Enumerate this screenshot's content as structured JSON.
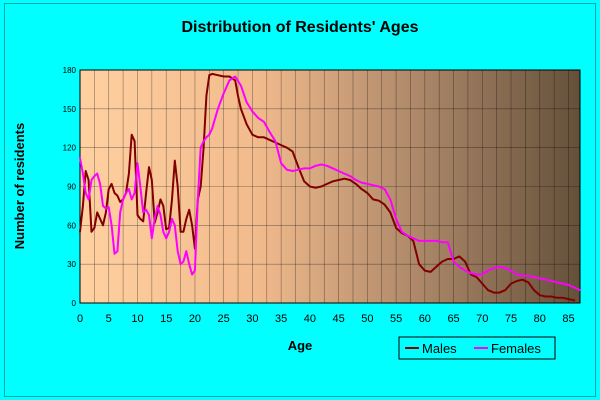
{
  "chart_data": {
    "type": "line",
    "title": "Distribution of Residents' Ages",
    "xlabel": "Age",
    "ylabel": "Number of residents",
    "xlim": [
      0,
      87
    ],
    "ylim": [
      0,
      180
    ],
    "x_ticks": [
      "0",
      "5",
      "10",
      "15",
      "20",
      "25",
      "30",
      "35",
      "40",
      "45",
      "50",
      "55",
      "60",
      "65",
      "70",
      "75",
      "80",
      "85"
    ],
    "y_ticks": [
      "0",
      "30",
      "60",
      "90",
      "120",
      "150",
      "180"
    ],
    "grid": true,
    "legend": "bottom-right",
    "series": [
      {
        "name": "Males",
        "color": "#800000",
        "points": [
          [
            0,
            55
          ],
          [
            0.5,
            75
          ],
          [
            1,
            102
          ],
          [
            1.5,
            95
          ],
          [
            2,
            55
          ],
          [
            2.5,
            58
          ],
          [
            3,
            70
          ],
          [
            3.5,
            65
          ],
          [
            4,
            60
          ],
          [
            4.5,
            70
          ],
          [
            5,
            88
          ],
          [
            5.5,
            92
          ],
          [
            6,
            85
          ],
          [
            6.5,
            83
          ],
          [
            7,
            78
          ],
          [
            7.5,
            80
          ],
          [
            8,
            85
          ],
          [
            8.5,
            100
          ],
          [
            9,
            130
          ],
          [
            9.5,
            125
          ],
          [
            10,
            68
          ],
          [
            10.5,
            65
          ],
          [
            11,
            63
          ],
          [
            11.5,
            85
          ],
          [
            12,
            105
          ],
          [
            12.5,
            95
          ],
          [
            13,
            62
          ],
          [
            13.5,
            70
          ],
          [
            14,
            80
          ],
          [
            14.5,
            75
          ],
          [
            15,
            57
          ],
          [
            15.5,
            58
          ],
          [
            16,
            80
          ],
          [
            16.5,
            110
          ],
          [
            17,
            90
          ],
          [
            17.5,
            55
          ],
          [
            18,
            55
          ],
          [
            18.5,
            65
          ],
          [
            19,
            72
          ],
          [
            19.5,
            60
          ],
          [
            20,
            42
          ],
          [
            20.5,
            80
          ],
          [
            21,
            90
          ],
          [
            21.5,
            120
          ],
          [
            22,
            160
          ],
          [
            22.5,
            176
          ],
          [
            23,
            177
          ],
          [
            24,
            176
          ],
          [
            25,
            175
          ],
          [
            26,
            175
          ],
          [
            27,
            172
          ],
          [
            27.5,
            160
          ],
          [
            28,
            150
          ],
          [
            29,
            138
          ],
          [
            30,
            130
          ],
          [
            31,
            128
          ],
          [
            32,
            128
          ],
          [
            33,
            126
          ],
          [
            34,
            124
          ],
          [
            35,
            122
          ],
          [
            36,
            120
          ],
          [
            37,
            117
          ],
          [
            38,
            105
          ],
          [
            39,
            94
          ],
          [
            40,
            90
          ],
          [
            41,
            89
          ],
          [
            42,
            90
          ],
          [
            43,
            92
          ],
          [
            44,
            94
          ],
          [
            45,
            95
          ],
          [
            46,
            96
          ],
          [
            47,
            95
          ],
          [
            48,
            92
          ],
          [
            49,
            88
          ],
          [
            50,
            85
          ],
          [
            51,
            80
          ],
          [
            52,
            79
          ],
          [
            53,
            76
          ],
          [
            54,
            70
          ],
          [
            55,
            58
          ],
          [
            56,
            54
          ],
          [
            57,
            52
          ],
          [
            58,
            48
          ],
          [
            59,
            30
          ],
          [
            60,
            25
          ],
          [
            61,
            24
          ],
          [
            62,
            28
          ],
          [
            63,
            32
          ],
          [
            64,
            34
          ],
          [
            65,
            34
          ],
          [
            66,
            36
          ],
          [
            67,
            32
          ],
          [
            68,
            22
          ],
          [
            69,
            20
          ],
          [
            70,
            15
          ],
          [
            71,
            10
          ],
          [
            72,
            8
          ],
          [
            73,
            8
          ],
          [
            74,
            10
          ],
          [
            75,
            15
          ],
          [
            76,
            17
          ],
          [
            77,
            18
          ],
          [
            78,
            16
          ],
          [
            79,
            10
          ],
          [
            80,
            6
          ],
          [
            81,
            5
          ],
          [
            82,
            5
          ],
          [
            83,
            4
          ],
          [
            84,
            4
          ],
          [
            85,
            3
          ],
          [
            86,
            2
          ]
        ]
      },
      {
        "name": "Females",
        "color": "#ff00ff",
        "points": [
          [
            0,
            112
          ],
          [
            0.5,
            100
          ],
          [
            1,
            85
          ],
          [
            1.5,
            80
          ],
          [
            2,
            95
          ],
          [
            2.5,
            98
          ],
          [
            3,
            100
          ],
          [
            3.5,
            92
          ],
          [
            4,
            75
          ],
          [
            4.5,
            73
          ],
          [
            5,
            74
          ],
          [
            5.5,
            60
          ],
          [
            6,
            38
          ],
          [
            6.5,
            40
          ],
          [
            7,
            70
          ],
          [
            7.5,
            80
          ],
          [
            8,
            85
          ],
          [
            8.5,
            88
          ],
          [
            9,
            80
          ],
          [
            9.5,
            85
          ],
          [
            10,
            108
          ],
          [
            10.5,
            90
          ],
          [
            11,
            70
          ],
          [
            11.5,
            72
          ],
          [
            12,
            68
          ],
          [
            12.5,
            50
          ],
          [
            13,
            65
          ],
          [
            13.5,
            75
          ],
          [
            14,
            68
          ],
          [
            14.5,
            55
          ],
          [
            15,
            50
          ],
          [
            15.5,
            55
          ],
          [
            16,
            65
          ],
          [
            16.5,
            60
          ],
          [
            17,
            40
          ],
          [
            17.5,
            30
          ],
          [
            18,
            32
          ],
          [
            18.5,
            40
          ],
          [
            19,
            30
          ],
          [
            19.5,
            22
          ],
          [
            20,
            25
          ],
          [
            20.5,
            80
          ],
          [
            21,
            120
          ],
          [
            21.5,
            125
          ],
          [
            22,
            128
          ],
          [
            22.5,
            130
          ],
          [
            23,
            135
          ],
          [
            24,
            150
          ],
          [
            25,
            162
          ],
          [
            26,
            172
          ],
          [
            27,
            175
          ],
          [
            28,
            168
          ],
          [
            29,
            155
          ],
          [
            30,
            148
          ],
          [
            31,
            143
          ],
          [
            32,
            140
          ],
          [
            33,
            132
          ],
          [
            34,
            125
          ],
          [
            35,
            108
          ],
          [
            36,
            103
          ],
          [
            37,
            102
          ],
          [
            38,
            103
          ],
          [
            39,
            104
          ],
          [
            40,
            104
          ],
          [
            41,
            106
          ],
          [
            42,
            107
          ],
          [
            43,
            106
          ],
          [
            44,
            104
          ],
          [
            45,
            102
          ],
          [
            46,
            100
          ],
          [
            47,
            98
          ],
          [
            48,
            95
          ],
          [
            49,
            93
          ],
          [
            50,
            92
          ],
          [
            51,
            91
          ],
          [
            52,
            90
          ],
          [
            53,
            88
          ],
          [
            54,
            80
          ],
          [
            55,
            65
          ],
          [
            56,
            55
          ],
          [
            57,
            52
          ],
          [
            58,
            50
          ],
          [
            59,
            48
          ],
          [
            60,
            48
          ],
          [
            61,
            48
          ],
          [
            62,
            48
          ],
          [
            63,
            47
          ],
          [
            64,
            47
          ],
          [
            65,
            32
          ],
          [
            66,
            28
          ],
          [
            67,
            25
          ],
          [
            68,
            23
          ],
          [
            69,
            22
          ],
          [
            70,
            22
          ],
          [
            71,
            25
          ],
          [
            72,
            27
          ],
          [
            73,
            28
          ],
          [
            74,
            27
          ],
          [
            75,
            25
          ],
          [
            76,
            22
          ],
          [
            77,
            21
          ],
          [
            78,
            21
          ],
          [
            79,
            20
          ],
          [
            80,
            19
          ],
          [
            81,
            18
          ],
          [
            82,
            17
          ],
          [
            83,
            16
          ],
          [
            84,
            15
          ],
          [
            85,
            14
          ],
          [
            86,
            12
          ],
          [
            87,
            10
          ]
        ]
      }
    ]
  },
  "colors": {
    "background": "#00ffff",
    "plot_left": "#ffd0a0",
    "plot_right": "#64503a",
    "grid": "#000000",
    "text": "#000000"
  }
}
